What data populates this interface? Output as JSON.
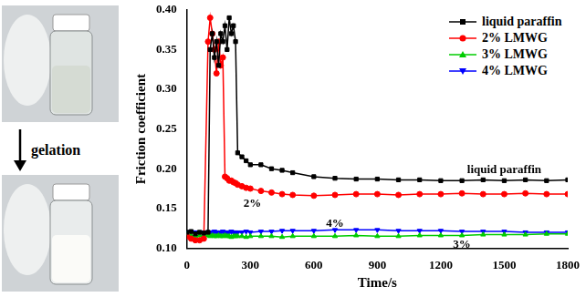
{
  "figure_text": {
    "arrow_label": "gelation"
  },
  "chart_data": {
    "type": "line",
    "x_label": "Time/s",
    "y_label": "Friction coefficient",
    "xlim": [
      0,
      1800
    ],
    "xticks": [
      0,
      300,
      600,
      900,
      1200,
      1500,
      1800
    ],
    "ylim": [
      0.1,
      0.4
    ],
    "yticks": [
      {
        "value": 0.1,
        "label": "0.10"
      },
      {
        "value": 0.15,
        "label": "0.15"
      },
      {
        "value": 0.2,
        "label": "0.20"
      },
      {
        "value": 0.25,
        "label": "0.25"
      },
      {
        "value": 0.3,
        "label": "0.30"
      },
      {
        "value": 0.35,
        "label": "0.35"
      },
      {
        "value": 0.4,
        "label": "0.40"
      }
    ],
    "grid": false,
    "legend": "top-right",
    "x": [
      0,
      20,
      40,
      60,
      80,
      100,
      110,
      120,
      130,
      140,
      150,
      160,
      170,
      180,
      190,
      200,
      210,
      220,
      230,
      240,
      260,
      280,
      300,
      350,
      400,
      450,
      500,
      600,
      700,
      800,
      900,
      1000,
      1100,
      1200,
      1300,
      1400,
      1500,
      1600,
      1700,
      1800
    ],
    "series": [
      {
        "name": "liquid paraffin",
        "color": "#000000",
        "marker": "square",
        "values": [
          0.12,
          0.121,
          0.118,
          0.12,
          0.119,
          0.12,
          0.35,
          0.37,
          0.34,
          0.36,
          0.33,
          0.37,
          0.36,
          0.38,
          0.35,
          0.39,
          0.37,
          0.38,
          0.36,
          0.22,
          0.215,
          0.21,
          0.205,
          0.205,
          0.2,
          0.198,
          0.195,
          0.19,
          0.188,
          0.187,
          0.187,
          0.186,
          0.186,
          0.185,
          0.185,
          0.186,
          0.185,
          0.186,
          0.185,
          0.186
        ]
      },
      {
        "name": "2% LMWG",
        "color": "#ff0000",
        "marker": "circle",
        "values": [
          0.115,
          0.112,
          0.11,
          0.11,
          0.112,
          0.36,
          0.39,
          0.37,
          0.35,
          0.32,
          0.36,
          0.33,
          0.34,
          0.19,
          0.188,
          0.185,
          0.185,
          0.183,
          0.182,
          0.18,
          0.178,
          0.176,
          0.175,
          0.172,
          0.17,
          0.168,
          0.167,
          0.166,
          0.167,
          0.168,
          0.168,
          0.167,
          0.168,
          0.168,
          0.169,
          0.168,
          0.168,
          0.169,
          0.168,
          0.168
        ]
      },
      {
        "name": "3% LMWG",
        "color": "#00cc00",
        "marker": "triangle-up",
        "values": [
          0.118,
          0.116,
          0.115,
          0.116,
          0.115,
          0.116,
          0.115,
          0.116,
          0.115,
          0.115,
          0.116,
          0.115,
          0.115,
          0.116,
          0.115,
          0.115,
          0.114,
          0.115,
          0.115,
          0.115,
          0.115,
          0.114,
          0.115,
          0.115,
          0.115,
          0.114,
          0.115,
          0.115,
          0.115,
          0.116,
          0.115,
          0.115,
          0.116,
          0.116,
          0.116,
          0.117,
          0.117,
          0.117,
          0.118,
          0.118
        ]
      },
      {
        "name": "4% LMWG",
        "color": "#0000ff",
        "marker": "triangle-down",
        "values": [
          0.12,
          0.121,
          0.12,
          0.119,
          0.12,
          0.12,
          0.12,
          0.12,
          0.121,
          0.12,
          0.12,
          0.12,
          0.121,
          0.12,
          0.12,
          0.12,
          0.121,
          0.12,
          0.12,
          0.12,
          0.12,
          0.121,
          0.12,
          0.121,
          0.121,
          0.122,
          0.122,
          0.122,
          0.123,
          0.123,
          0.123,
          0.122,
          0.122,
          0.122,
          0.121,
          0.121,
          0.121,
          0.12,
          0.12,
          0.12
        ]
      }
    ],
    "annotations": [
      {
        "text": "liquid paraffin",
        "x": 1500,
        "y": 0.198
      },
      {
        "text": "2%",
        "x": 310,
        "y": 0.156
      },
      {
        "text": "4%",
        "x": 700,
        "y": 0.131
      },
      {
        "text": "3%",
        "x": 1300,
        "y": 0.104
      }
    ]
  }
}
